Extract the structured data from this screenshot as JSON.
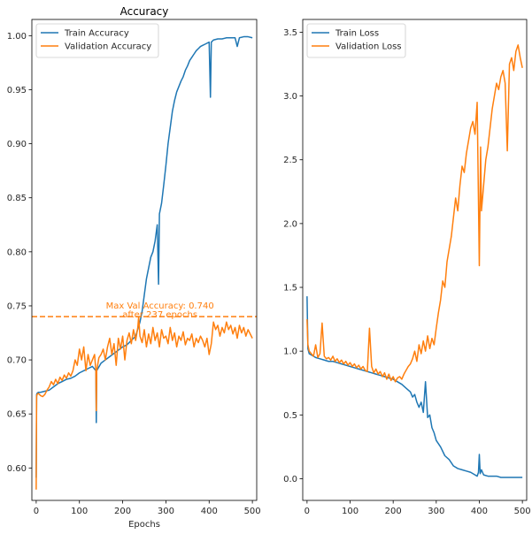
{
  "chart_data": [
    {
      "type": "line",
      "title": "Accuracy",
      "xlabel": "Epochs",
      "ylabel": "",
      "xlim": [
        -10,
        510
      ],
      "ylim": [
        0.57,
        1.015
      ],
      "xticks": [
        0,
        100,
        200,
        300,
        400,
        500
      ],
      "yticks": [
        0.6,
        0.65,
        0.7,
        0.75,
        0.8,
        0.85,
        0.9,
        0.95,
        1.0
      ],
      "ytick_labels": [
        "0.60",
        "0.65",
        "0.70",
        "0.75",
        "0.80",
        "0.85",
        "0.90",
        "0.95",
        "1.00"
      ],
      "legend": "top-left",
      "grid": false,
      "series": [
        {
          "name": "Train Accuracy",
          "color": "#1f77b4",
          "x": [
            0,
            1,
            2,
            5,
            10,
            20,
            30,
            40,
            50,
            60,
            70,
            80,
            90,
            100,
            110,
            120,
            130,
            138,
            139,
            140,
            150,
            160,
            170,
            180,
            190,
            200,
            210,
            220,
            230,
            240,
            245,
            250,
            255,
            260,
            265,
            270,
            275,
            280,
            283,
            285,
            290,
            295,
            300,
            305,
            310,
            315,
            320,
            325,
            330,
            335,
            340,
            345,
            350,
            355,
            360,
            365,
            370,
            375,
            380,
            385,
            390,
            395,
            400,
            403,
            405,
            410,
            420,
            430,
            440,
            450,
            460,
            465,
            470,
            480,
            490,
            500
          ],
          "y": [
            0.591,
            0.668,
            0.669,
            0.67,
            0.67,
            0.671,
            0.672,
            0.675,
            0.678,
            0.68,
            0.682,
            0.683,
            0.685,
            0.688,
            0.69,
            0.692,
            0.694,
            0.69,
            0.642,
            0.69,
            0.697,
            0.7,
            0.703,
            0.706,
            0.709,
            0.712,
            0.714,
            0.718,
            0.722,
            0.735,
            0.745,
            0.76,
            0.775,
            0.785,
            0.795,
            0.8,
            0.81,
            0.825,
            0.77,
            0.835,
            0.845,
            0.862,
            0.88,
            0.9,
            0.915,
            0.93,
            0.94,
            0.948,
            0.953,
            0.958,
            0.962,
            0.968,
            0.972,
            0.977,
            0.98,
            0.983,
            0.986,
            0.988,
            0.99,
            0.991,
            0.992,
            0.993,
            0.994,
            0.943,
            0.994,
            0.996,
            0.997,
            0.997,
            0.998,
            0.998,
            0.998,
            0.99,
            0.998,
            0.999,
            0.999,
            0.998
          ]
        },
        {
          "name": "Validation Accuracy",
          "color": "#ff7f0e",
          "x": [
            0,
            1,
            2,
            5,
            10,
            15,
            20,
            25,
            30,
            35,
            40,
            45,
            50,
            55,
            60,
            65,
            70,
            75,
            80,
            85,
            90,
            95,
            100,
            105,
            110,
            115,
            120,
            125,
            130,
            135,
            138,
            139,
            140,
            145,
            150,
            155,
            160,
            165,
            170,
            175,
            180,
            185,
            190,
            195,
            200,
            205,
            210,
            215,
            220,
            225,
            230,
            235,
            237,
            240,
            245,
            250,
            255,
            260,
            265,
            270,
            275,
            280,
            285,
            290,
            295,
            300,
            305,
            310,
            315,
            320,
            325,
            330,
            335,
            340,
            345,
            350,
            355,
            360,
            365,
            370,
            375,
            380,
            385,
            390,
            395,
            400,
            405,
            410,
            415,
            420,
            425,
            430,
            435,
            440,
            445,
            450,
            455,
            460,
            465,
            470,
            475,
            480,
            485,
            490,
            495,
            500
          ],
          "y": [
            0.58,
            0.666,
            0.668,
            0.669,
            0.667,
            0.666,
            0.668,
            0.672,
            0.675,
            0.68,
            0.677,
            0.682,
            0.678,
            0.684,
            0.681,
            0.686,
            0.683,
            0.688,
            0.685,
            0.69,
            0.7,
            0.695,
            0.71,
            0.7,
            0.712,
            0.69,
            0.705,
            0.695,
            0.7,
            0.705,
            0.69,
            0.653,
            0.69,
            0.702,
            0.705,
            0.71,
            0.7,
            0.712,
            0.72,
            0.705,
            0.715,
            0.695,
            0.72,
            0.71,
            0.722,
            0.7,
            0.718,
            0.725,
            0.715,
            0.728,
            0.718,
            0.73,
            0.74,
            0.722,
            0.716,
            0.728,
            0.712,
            0.724,
            0.715,
            0.73,
            0.718,
            0.725,
            0.712,
            0.728,
            0.72,
            0.722,
            0.715,
            0.73,
            0.718,
            0.725,
            0.712,
            0.722,
            0.718,
            0.726,
            0.714,
            0.72,
            0.718,
            0.724,
            0.712,
            0.72,
            0.716,
            0.722,
            0.718,
            0.712,
            0.72,
            0.705,
            0.715,
            0.735,
            0.728,
            0.732,
            0.722,
            0.73,
            0.725,
            0.735,
            0.728,
            0.732,
            0.724,
            0.73,
            0.72,
            0.732,
            0.725,
            0.73,
            0.722,
            0.728,
            0.724,
            0.72
          ]
        }
      ],
      "reference_line": {
        "y": 0.74,
        "style": "dashed",
        "color": "#ff7f0e"
      },
      "annotation": {
        "x": 237,
        "y": 0.74,
        "line1": "Max Val Accuracy: 0.740",
        "line2": "after 237 epochs",
        "color": "#ff7f0e"
      }
    },
    {
      "type": "line",
      "title": "",
      "xlabel": "",
      "ylabel": "",
      "xlim": [
        -10,
        510
      ],
      "ylim": [
        -0.17,
        3.6
      ],
      "xticks": [
        0,
        100,
        200,
        300,
        400,
        500
      ],
      "yticks": [
        0.0,
        0.5,
        1.0,
        1.5,
        2.0,
        2.5,
        3.0,
        3.5
      ],
      "ytick_labels": [
        "0.0",
        "0.5",
        "1.0",
        "1.5",
        "2.0",
        "2.5",
        "3.0",
        "3.5"
      ],
      "legend": "top-left",
      "grid": false,
      "series": [
        {
          "name": "Train Loss",
          "color": "#1f77b4",
          "x": [
            0,
            2,
            5,
            10,
            20,
            30,
            40,
            50,
            60,
            70,
            80,
            90,
            100,
            110,
            120,
            130,
            140,
            150,
            160,
            170,
            180,
            190,
            200,
            210,
            220,
            230,
            240,
            245,
            250,
            255,
            260,
            265,
            270,
            275,
            280,
            285,
            290,
            295,
            300,
            310,
            320,
            330,
            340,
            350,
            360,
            370,
            380,
            390,
            395,
            398,
            400,
            402,
            405,
            410,
            420,
            430,
            440,
            450,
            460,
            470,
            480,
            490,
            500
          ],
          "y": [
            1.43,
            1.02,
            0.98,
            0.97,
            0.95,
            0.94,
            0.93,
            0.92,
            0.92,
            0.91,
            0.9,
            0.89,
            0.88,
            0.87,
            0.86,
            0.85,
            0.84,
            0.83,
            0.82,
            0.81,
            0.8,
            0.79,
            0.78,
            0.76,
            0.74,
            0.71,
            0.68,
            0.64,
            0.66,
            0.6,
            0.56,
            0.6,
            0.52,
            0.76,
            0.48,
            0.5,
            0.4,
            0.36,
            0.3,
            0.25,
            0.18,
            0.15,
            0.1,
            0.08,
            0.07,
            0.06,
            0.05,
            0.03,
            0.02,
            0.05,
            0.19,
            0.04,
            0.07,
            0.03,
            0.02,
            0.02,
            0.02,
            0.01,
            0.01,
            0.01,
            0.01,
            0.01,
            0.01
          ]
        },
        {
          "name": "Validation Loss",
          "color": "#ff7f0e",
          "x": [
            0,
            2,
            5,
            10,
            15,
            20,
            25,
            30,
            35,
            40,
            45,
            50,
            55,
            60,
            65,
            70,
            75,
            80,
            85,
            90,
            95,
            100,
            105,
            110,
            115,
            120,
            125,
            130,
            135,
            140,
            145,
            150,
            155,
            160,
            165,
            170,
            175,
            180,
            185,
            190,
            195,
            200,
            205,
            210,
            215,
            220,
            225,
            230,
            235,
            240,
            245,
            250,
            255,
            260,
            265,
            270,
            275,
            280,
            285,
            290,
            295,
            300,
            305,
            310,
            315,
            320,
            325,
            330,
            335,
            340,
            345,
            350,
            355,
            360,
            365,
            370,
            375,
            380,
            385,
            390,
            395,
            400,
            403,
            405,
            410,
            415,
            420,
            425,
            430,
            435,
            440,
            445,
            450,
            455,
            460,
            465,
            470,
            475,
            480,
            485,
            490,
            495,
            500
          ],
          "y": [
            1.25,
            1.05,
            1.0,
            0.98,
            0.96,
            1.05,
            0.95,
            0.98,
            1.22,
            0.96,
            0.94,
            0.95,
            0.93,
            0.96,
            0.92,
            0.94,
            0.91,
            0.93,
            0.9,
            0.92,
            0.89,
            0.91,
            0.88,
            0.9,
            0.87,
            0.89,
            0.86,
            0.88,
            0.85,
            0.84,
            1.18,
            0.88,
            0.83,
            0.86,
            0.82,
            0.84,
            0.8,
            0.83,
            0.78,
            0.82,
            0.77,
            0.8,
            0.76,
            0.79,
            0.8,
            0.78,
            0.82,
            0.85,
            0.88,
            0.9,
            0.94,
            1.0,
            0.92,
            1.05,
            0.98,
            1.08,
            1.0,
            1.12,
            1.02,
            1.1,
            1.05,
            1.18,
            1.3,
            1.4,
            1.55,
            1.5,
            1.7,
            1.8,
            1.9,
            2.05,
            2.2,
            2.1,
            2.3,
            2.45,
            2.4,
            2.55,
            2.65,
            2.75,
            2.8,
            2.7,
            2.95,
            1.67,
            2.6,
            2.1,
            2.3,
            2.5,
            2.6,
            2.75,
            2.9,
            3.0,
            3.1,
            3.05,
            3.15,
            3.2,
            3.1,
            2.57,
            3.25,
            3.3,
            3.2,
            3.35,
            3.4,
            3.3,
            3.22
          ]
        }
      ]
    }
  ]
}
